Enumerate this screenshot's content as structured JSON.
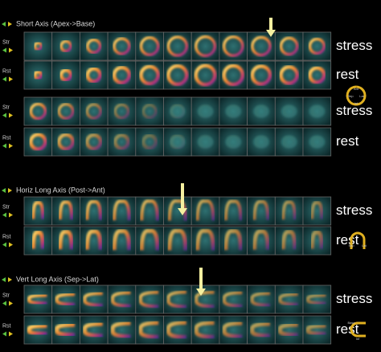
{
  "sections": [
    {
      "title": "Short Axis (Apex->Base)",
      "rows": [
        {
          "label": "Str",
          "side": "stress"
        },
        {
          "label": "Rst",
          "side": "rest"
        }
      ]
    },
    {
      "rows": [
        {
          "label": "Str",
          "side": "stress"
        },
        {
          "label": "Rst",
          "side": "rest"
        }
      ]
    },
    {
      "title": "Horiz Long Axis (Post->Ant)",
      "rows": [
        {
          "label": "Str",
          "side": "stress"
        },
        {
          "label": "Rst",
          "side": "rest"
        }
      ]
    },
    {
      "title": "Vert Long Axis (Sep->Lat)",
      "rows": [
        {
          "label": "Str",
          "side": "stress"
        },
        {
          "label": "Rst",
          "side": "rest"
        }
      ]
    }
  ],
  "icons": {
    "short": [
      "Ant",
      "Sep",
      "Lat",
      "Inf"
    ],
    "horiz": [
      "Sep",
      "Lat"
    ],
    "vert": [
      "Base",
      "Inf"
    ]
  }
}
